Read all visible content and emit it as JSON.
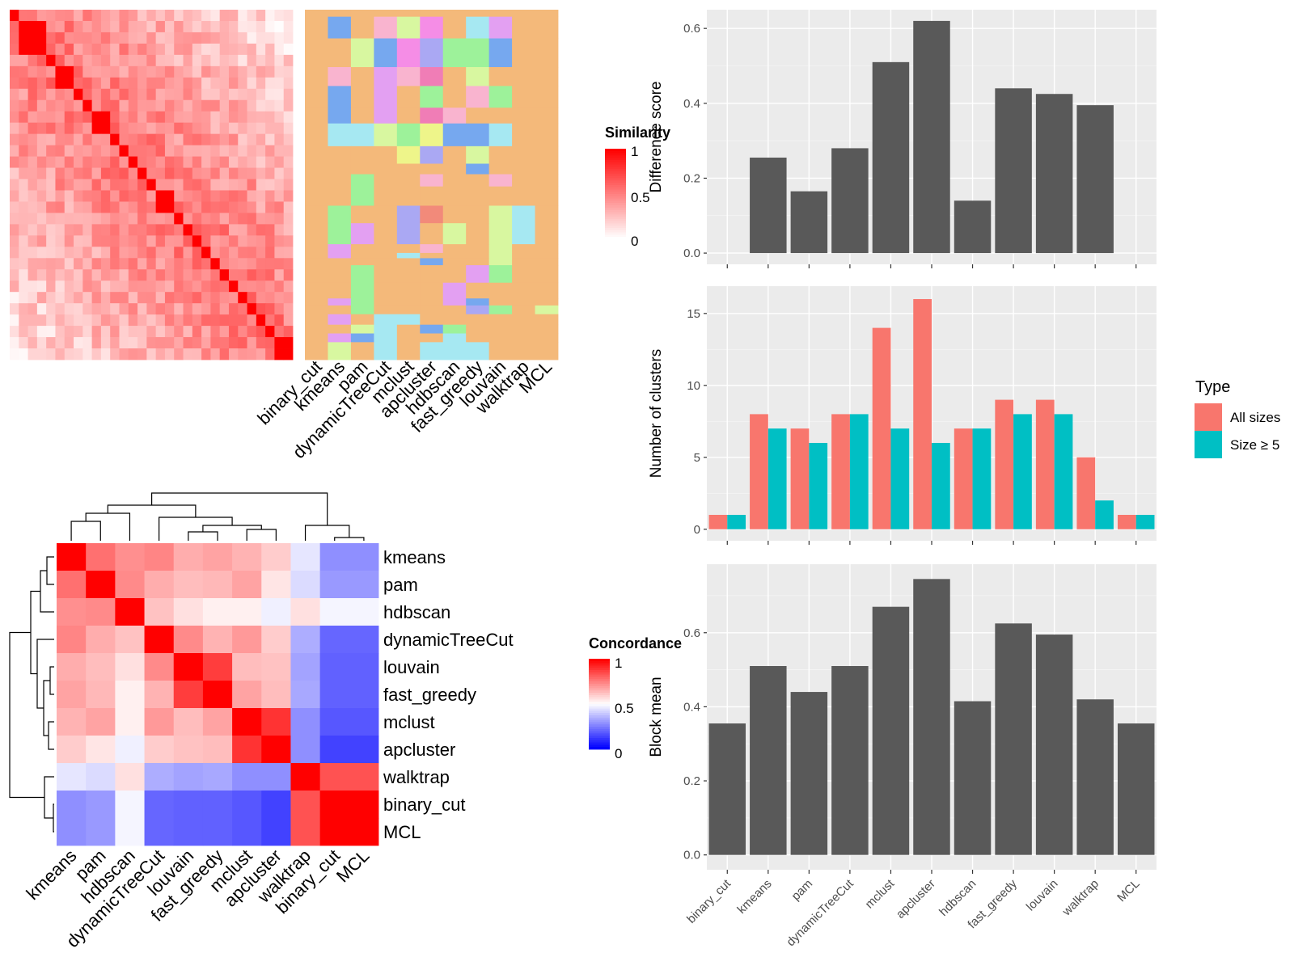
{
  "chart_data": [
    {
      "type": "heatmap",
      "panel": "similarity-heatmap",
      "legend_title": "Similarity",
      "legend_ticks": [
        "1",
        "0.5",
        "0"
      ],
      "range": [
        0,
        1
      ],
      "colors": {
        "low": "#ffffff",
        "high": "#ff0000"
      },
      "block_sizes": [
        1,
        3,
        1,
        2,
        1,
        1,
        2,
        1,
        1,
        1,
        1,
        1,
        2,
        1,
        1,
        1,
        1,
        1,
        1,
        1,
        1,
        1,
        1,
        1,
        2
      ]
    },
    {
      "type": "heatmap",
      "panel": "membership-columns",
      "methods": [
        "binary_cut",
        "kmeans",
        "pam",
        "dynamicTreeCut",
        "mclust",
        "apcluster",
        "hdbscan",
        "fast_greedy",
        "louvain",
        "walktrap",
        "MCL"
      ],
      "colors": {
        "orange": "#f4b97a",
        "blue": "#76a8ef",
        "cyan": "#a6e8f2",
        "green": "#9df29a",
        "violet": "#e3a0f2",
        "pink": "#f9b4cf",
        "yellow": "#eef58a",
        "lime": "#d8f7a0",
        "magenta": "#f58de6",
        "lavender": "#aaa8f3",
        "red": "#f28a7a",
        "rose": "#f07db6"
      }
    },
    {
      "type": "heatmap",
      "panel": "concordance-heatmap",
      "legend_title": "Concordance",
      "legend_ticks": [
        "1",
        "0.5",
        "0"
      ],
      "range": [
        0,
        1
      ],
      "colors": {
        "low": "#0000ff",
        "mid": "#ffffff",
        "high": "#ff0000"
      },
      "row_labels": [
        "kmeans",
        "pam",
        "hdbscan",
        "dynamicTreeCut",
        "louvain",
        "fast_greedy",
        "mclust",
        "apcluster",
        "walktrap",
        "binary_cut",
        "MCL"
      ],
      "col_labels": [
        "kmeans",
        "pam",
        "hdbscan",
        "dynamicTreeCut",
        "louvain",
        "fast_greedy",
        "mclust",
        "apcluster",
        "walktrap",
        "binary_cut",
        "MCL"
      ],
      "matrix": [
        [
          1.0,
          0.78,
          0.72,
          0.74,
          0.66,
          0.68,
          0.65,
          0.6,
          0.45,
          0.28,
          0.28
        ],
        [
          0.78,
          1.0,
          0.73,
          0.66,
          0.63,
          0.64,
          0.68,
          0.55,
          0.43,
          0.3,
          0.3
        ],
        [
          0.72,
          0.73,
          1.0,
          0.62,
          0.56,
          0.53,
          0.53,
          0.47,
          0.56,
          0.48,
          0.48
        ],
        [
          0.74,
          0.66,
          0.62,
          1.0,
          0.73,
          0.65,
          0.7,
          0.6,
          0.34,
          0.2,
          0.2
        ],
        [
          0.66,
          0.63,
          0.56,
          0.73,
          1.0,
          0.88,
          0.63,
          0.62,
          0.32,
          0.19,
          0.19
        ],
        [
          0.68,
          0.64,
          0.53,
          0.65,
          0.88,
          1.0,
          0.68,
          0.63,
          0.33,
          0.19,
          0.19
        ],
        [
          0.65,
          0.68,
          0.53,
          0.7,
          0.63,
          0.68,
          1.0,
          0.9,
          0.28,
          0.17,
          0.17
        ],
        [
          0.6,
          0.55,
          0.47,
          0.6,
          0.62,
          0.63,
          0.9,
          1.0,
          0.28,
          0.13,
          0.13
        ],
        [
          0.45,
          0.43,
          0.56,
          0.34,
          0.32,
          0.33,
          0.28,
          0.28,
          1.0,
          0.84,
          0.84
        ],
        [
          0.28,
          0.3,
          0.48,
          0.2,
          0.19,
          0.19,
          0.17,
          0.13,
          0.84,
          1.0,
          1.0
        ],
        [
          0.28,
          0.3,
          0.48,
          0.2,
          0.19,
          0.19,
          0.17,
          0.13,
          0.84,
          1.0,
          1.0
        ]
      ]
    },
    {
      "type": "bar",
      "panel": "difference-score",
      "categories": [
        "binary_cut",
        "kmeans",
        "pam",
        "dynamicTreeCut",
        "mclust",
        "apcluster",
        "hdbscan",
        "fast_greedy",
        "louvain",
        "walktrap",
        "MCL"
      ],
      "values": [
        0,
        0.255,
        0.165,
        0.28,
        0.51,
        0.62,
        0.14,
        0.44,
        0.425,
        0.395,
        0
      ],
      "ylabel": "Difference score",
      "ylim": [
        -0.03,
        0.65
      ],
      "yticks": [
        "0.0",
        "0.2",
        "0.4",
        "0.6"
      ],
      "bar_color": "#595959",
      "grid": true
    },
    {
      "type": "bar",
      "panel": "number-of-clusters",
      "categories": [
        "binary_cut",
        "kmeans",
        "pam",
        "dynamicTreeCut",
        "mclust",
        "apcluster",
        "hdbscan",
        "fast_greedy",
        "louvain",
        "walktrap",
        "MCL"
      ],
      "series": [
        {
          "name": "All sizes",
          "color": "#f8766d",
          "values": [
            1,
            8,
            7,
            8,
            14,
            16,
            7,
            9,
            9,
            5,
            1
          ]
        },
        {
          "name": "Size ≥ 5",
          "color": "#00bfc4",
          "values": [
            1,
            7,
            6,
            8,
            7,
            6,
            7,
            8,
            8,
            2,
            1
          ]
        }
      ],
      "ylabel": "Number of clusters",
      "ylim": [
        -0.8,
        16.9
      ],
      "yticks": [
        "0",
        "5",
        "10",
        "15"
      ],
      "legend_title": "Type",
      "legend_position": "right",
      "grid": true
    },
    {
      "type": "bar",
      "panel": "block-mean",
      "categories": [
        "binary_cut",
        "kmeans",
        "pam",
        "dynamicTreeCut",
        "mclust",
        "apcluster",
        "hdbscan",
        "fast_greedy",
        "louvain",
        "walktrap",
        "MCL"
      ],
      "values": [
        0.355,
        0.51,
        0.44,
        0.51,
        0.67,
        0.745,
        0.415,
        0.625,
        0.595,
        0.42,
        0.355
      ],
      "ylabel": "Block mean",
      "ylim": [
        -0.04,
        0.785
      ],
      "yticks": [
        "0.0",
        "0.2",
        "0.4",
        "0.6"
      ],
      "bar_color": "#595959",
      "grid": true
    }
  ]
}
